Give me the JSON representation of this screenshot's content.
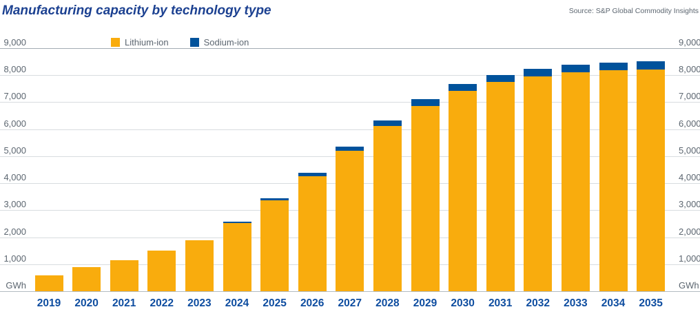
{
  "header": {
    "title": "Manufacturing capacity by technology type",
    "source": "Source: S&P Global Commodity Insights"
  },
  "chart_data": {
    "type": "bar",
    "stacked": true,
    "title": "Manufacturing capacity by technology type",
    "unit_label": "GWh",
    "categories": [
      "2019",
      "2020",
      "2021",
      "2022",
      "2023",
      "2024",
      "2025",
      "2026",
      "2027",
      "2028",
      "2029",
      "2030",
      "2031",
      "2032",
      "2033",
      "2034",
      "2035"
    ],
    "series": [
      {
        "name": "Lithium-ion",
        "color": "#F9AC0D",
        "values": [
          580,
          890,
          1160,
          1500,
          1890,
          2520,
          3370,
          4260,
          5190,
          6110,
          6855,
          7420,
          7740,
          7955,
          8100,
          8180,
          8200
        ]
      },
      {
        "name": "Sodium-ion",
        "color": "#00529B",
        "values": [
          0,
          0,
          0,
          0,
          0,
          60,
          80,
          130,
          175,
          220,
          255,
          260,
          270,
          285,
          290,
          290,
          325
        ]
      }
    ],
    "ylim": [
      0,
      9000
    ],
    "ytick_step": 1000,
    "ytick_labels": [
      "GWh",
      "1,000",
      "2,000",
      "3,000",
      "4,000",
      "5,000",
      "6,000",
      "7,000",
      "8,000",
      "9,000"
    ],
    "y_axis_sides": "both",
    "grid": true,
    "legend_position": "top-left",
    "xlabel": "",
    "ylabel": "GWh"
  },
  "colors": {
    "title_text": "#1C4191",
    "axis_text": "#5C6670",
    "year_text": "#0E4DA0",
    "gridline": "#D8DCDF",
    "lithium": "#F9AC0D",
    "sodium": "#00529B",
    "background": "#FFFFFF"
  }
}
